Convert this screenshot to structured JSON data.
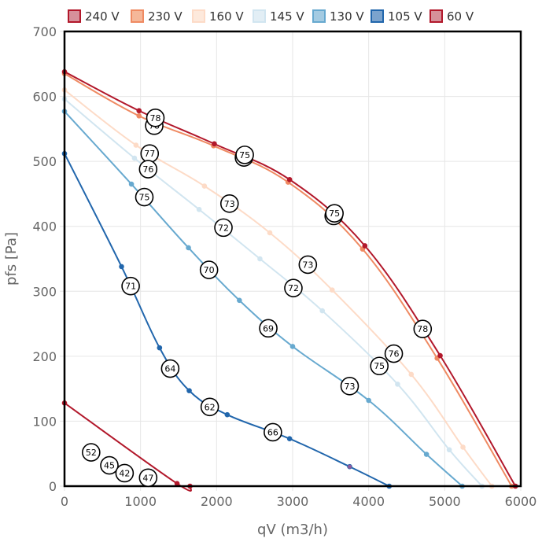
{
  "chart_data": {
    "type": "line",
    "xlabel": "qV (m3/h)",
    "ylabel": "pfs [Pa]",
    "xlim": [
      0,
      6000
    ],
    "ylim": [
      0,
      700
    ],
    "xticks": [
      0,
      1000,
      2000,
      3000,
      4000,
      5000,
      6000
    ],
    "yticks": [
      0,
      100,
      200,
      300,
      400,
      500,
      600,
      700
    ],
    "xtick_labels": [
      "0",
      "1000",
      "2000",
      "3000",
      "4000",
      "5000",
      "6000"
    ],
    "ytick_labels": [
      "0",
      "100",
      "200",
      "300",
      "400",
      "500",
      "600",
      "700"
    ],
    "grid": true,
    "legend_position": "top",
    "series": [
      {
        "name": "240 V",
        "color": "#b2182b",
        "fill": "#d6909a",
        "points": [
          [
            0,
            638
          ],
          [
            980,
            578
          ],
          [
            1970,
            527
          ],
          [
            2960,
            472
          ],
          [
            3950,
            370
          ],
          [
            4940,
            201
          ],
          [
            5930,
            0
          ]
        ]
      },
      {
        "name": "230 V",
        "color": "#ef8a62",
        "fill": "#f5b799",
        "points": [
          [
            0,
            635
          ],
          [
            980,
            570
          ],
          [
            1960,
            524
          ],
          [
            2940,
            468
          ],
          [
            3920,
            365
          ],
          [
            4900,
            197
          ],
          [
            5880,
            0
          ]
        ]
      },
      {
        "name": "160 V",
        "color": "#fddbc7",
        "fill": "#fde9dc",
        "points": [
          [
            0,
            610
          ],
          [
            940,
            525
          ],
          [
            1840,
            462
          ],
          [
            2700,
            390
          ],
          [
            3520,
            302
          ],
          [
            4560,
            172
          ],
          [
            5240,
            60
          ],
          [
            5620,
            0
          ]
        ]
      },
      {
        "name": "145 V",
        "color": "#d1e5f0",
        "fill": "#e2eef5",
        "points": [
          [
            0,
            596
          ],
          [
            920,
            505
          ],
          [
            1770,
            426
          ],
          [
            2570,
            350
          ],
          [
            3390,
            270
          ],
          [
            4380,
            157
          ],
          [
            5060,
            56
          ],
          [
            5490,
            0
          ]
        ]
      },
      {
        "name": "130 V",
        "color": "#67a9cf",
        "fill": "#a4cbe2",
        "points": [
          [
            0,
            577
          ],
          [
            880,
            465
          ],
          [
            1630,
            367
          ],
          [
            2300,
            286
          ],
          [
            3000,
            215
          ],
          [
            4000,
            132
          ],
          [
            4760,
            49
          ],
          [
            5230,
            0
          ]
        ]
      },
      {
        "name": "105 V",
        "color": "#2166ac",
        "fill": "#7ba3cd",
        "points": [
          [
            0,
            512
          ],
          [
            750,
            338
          ],
          [
            1250,
            213
          ],
          [
            1640,
            147
          ],
          [
            2140,
            110
          ],
          [
            2960,
            73
          ],
          [
            3750,
            30
          ],
          [
            4270,
            0
          ]
        ]
      },
      {
        "name": "60 V",
        "color": "#b2182b",
        "fill": "#d6909a",
        "points": [
          [
            0,
            128
          ],
          [
            1480,
            4
          ],
          [
            1650,
            0
          ]
        ]
      }
    ],
    "annotations": [
      {
        "text": "78",
        "x": 1180,
        "y": 555
      },
      {
        "text": "78",
        "x": 1195,
        "y": 567
      },
      {
        "text": "75",
        "x": 2360,
        "y": 506
      },
      {
        "text": "75",
        "x": 2370,
        "y": 510
      },
      {
        "text": "77",
        "x": 1120,
        "y": 512
      },
      {
        "text": "76",
        "x": 1100,
        "y": 488
      },
      {
        "text": "75",
        "x": 1050,
        "y": 445
      },
      {
        "text": "73",
        "x": 2170,
        "y": 435
      },
      {
        "text": "72",
        "x": 2090,
        "y": 398
      },
      {
        "text": "75",
        "x": 3540,
        "y": 416
      },
      {
        "text": "75",
        "x": 3550,
        "y": 420
      },
      {
        "text": "70",
        "x": 1900,
        "y": 333
      },
      {
        "text": "73",
        "x": 3200,
        "y": 341
      },
      {
        "text": "71",
        "x": 870,
        "y": 308
      },
      {
        "text": "72",
        "x": 3010,
        "y": 305
      },
      {
        "text": "69",
        "x": 2680,
        "y": 243
      },
      {
        "text": "78",
        "x": 4710,
        "y": 242
      },
      {
        "text": "76",
        "x": 4330,
        "y": 204
      },
      {
        "text": "75",
        "x": 4140,
        "y": 185
      },
      {
        "text": "64",
        "x": 1390,
        "y": 181
      },
      {
        "text": "73",
        "x": 3750,
        "y": 154
      },
      {
        "text": "62",
        "x": 1910,
        "y": 122
      },
      {
        "text": "66",
        "x": 2740,
        "y": 83
      },
      {
        "text": "52",
        "x": 350,
        "y": 52
      },
      {
        "text": "45",
        "x": 590,
        "y": 32
      },
      {
        "text": "42",
        "x": 790,
        "y": 20
      },
      {
        "text": "47",
        "x": 1100,
        "y": 13
      }
    ]
  }
}
